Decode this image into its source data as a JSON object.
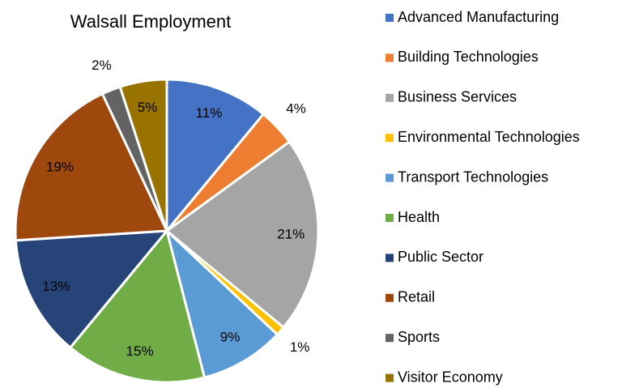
{
  "chart_data": {
    "type": "pie",
    "title": "Walsall Employment",
    "categories": [
      "Advanced Manufacturing",
      "Building Technologies",
      "Business Services",
      "Environmental Technologies",
      "Transport Technologies",
      "Health",
      "Public Sector",
      "Retail",
      "Sports",
      "Visitor Economy"
    ],
    "values": [
      11,
      4,
      21,
      1,
      9,
      15,
      13,
      19,
      2,
      5
    ],
    "value_labels": [
      "11%",
      "4%",
      "21%",
      "1%",
      "9%",
      "15%",
      "13%",
      "19%",
      "2%",
      "5%"
    ],
    "colors": [
      "#4472c4",
      "#ed7d31",
      "#a5a5a5",
      "#ffc000",
      "#5b9bd5",
      "#70ad47",
      "#264478",
      "#9e480e",
      "#636363",
      "#997300"
    ],
    "legend": "right"
  }
}
